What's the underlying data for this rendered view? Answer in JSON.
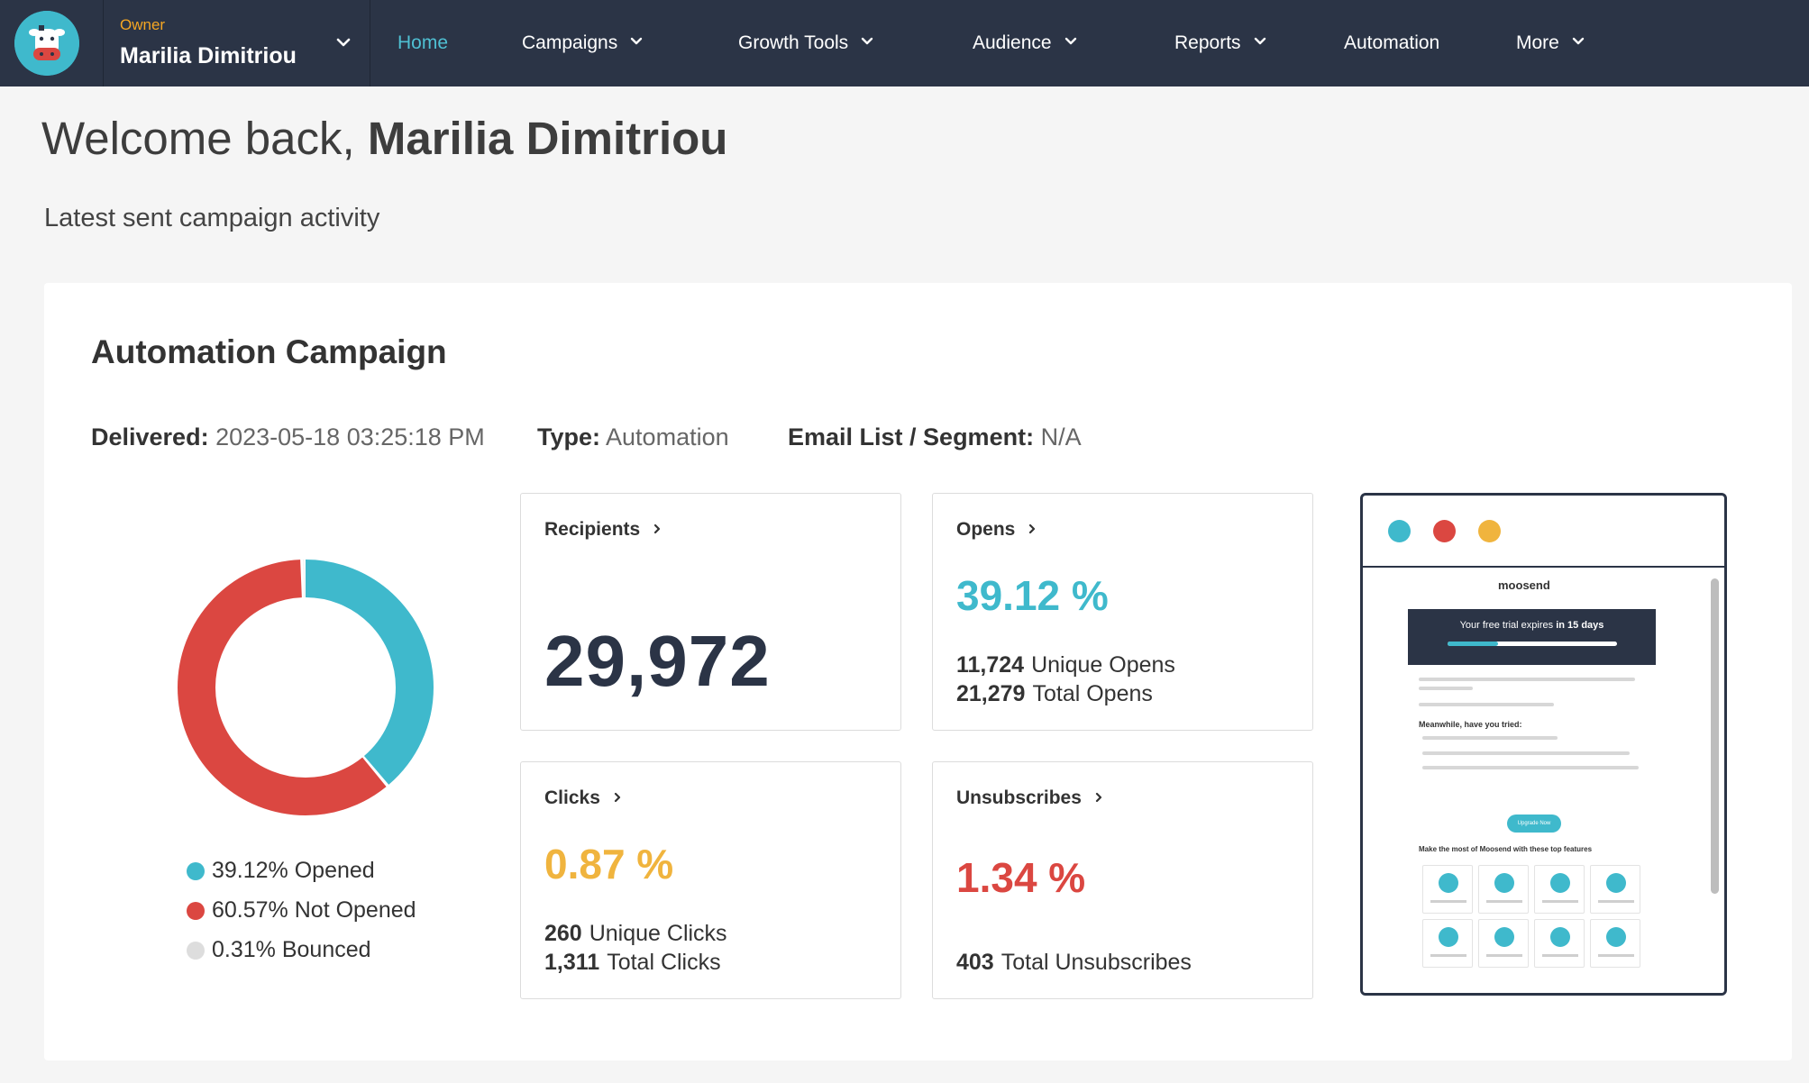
{
  "colors": {
    "nav_bg": "#2b3446",
    "accent": "#3fb9cc",
    "opened": "#3fb9cc",
    "not_opened": "#db4741",
    "bounced": "#dddddd",
    "clicks": "#f0b43e",
    "unsubscribes": "#db4741"
  },
  "owner": {
    "role": "Owner",
    "name": "Marilia Dimitriou",
    "avatar_icon": "cow-logo-icon"
  },
  "nav": {
    "items": [
      {
        "label": "Home",
        "active": true,
        "dropdown": false
      },
      {
        "label": "Campaigns",
        "active": false,
        "dropdown": true
      },
      {
        "label": "Growth Tools",
        "active": false,
        "dropdown": true
      },
      {
        "label": "Audience",
        "active": false,
        "dropdown": true
      },
      {
        "label": "Reports",
        "active": false,
        "dropdown": true
      },
      {
        "label": "Automation",
        "active": false,
        "dropdown": false
      },
      {
        "label": "More",
        "active": false,
        "dropdown": true
      }
    ]
  },
  "welcome": {
    "prefix": "Welcome back,",
    "name": "Marilia Dimitriou"
  },
  "subtitle": "Latest sent campaign activity",
  "campaign": {
    "title": "Automation Campaign",
    "delivered_label": "Delivered:",
    "delivered_value": "2023-05-18 03:25:18 PM",
    "type_label": "Type:",
    "type_value": "Automation",
    "list_label": "Email List / Segment:",
    "list_value": "N/A"
  },
  "chart_data": {
    "type": "pie",
    "donut": true,
    "slices": [
      {
        "label": "39.12% Opened",
        "value": 39.12,
        "color": "#3fb9cc"
      },
      {
        "label": "60.57% Not Opened",
        "value": 60.57,
        "color": "#db4741"
      },
      {
        "label": "0.31% Bounced",
        "value": 0.31,
        "color": "#dddddd"
      }
    ]
  },
  "stats": {
    "recipients": {
      "title": "Recipients",
      "value": "29,972"
    },
    "opens": {
      "title": "Opens",
      "percent": "39.12 %",
      "unique_num": "11,724",
      "unique_label": "Unique Opens",
      "total_num": "21,279",
      "total_label": "Total Opens"
    },
    "clicks": {
      "title": "Clicks",
      "percent": "0.87 %",
      "unique_num": "260",
      "unique_label": "Unique Clicks",
      "total_num": "1,311",
      "total_label": "Total Clicks"
    },
    "unsubscribes": {
      "title": "Unsubscribes",
      "percent": "1.34 %",
      "total_num": "403",
      "total_label": "Total Unsubscribes"
    }
  },
  "preview": {
    "logo_text": "moosend",
    "banner_text_prefix": "Your free trial expires",
    "banner_text_bold": "in 15 days",
    "section_heading": "Meanwhile, have you tried:",
    "button_label": "Upgrade Now",
    "features_heading": "Make the most of Moosend with these top features"
  }
}
